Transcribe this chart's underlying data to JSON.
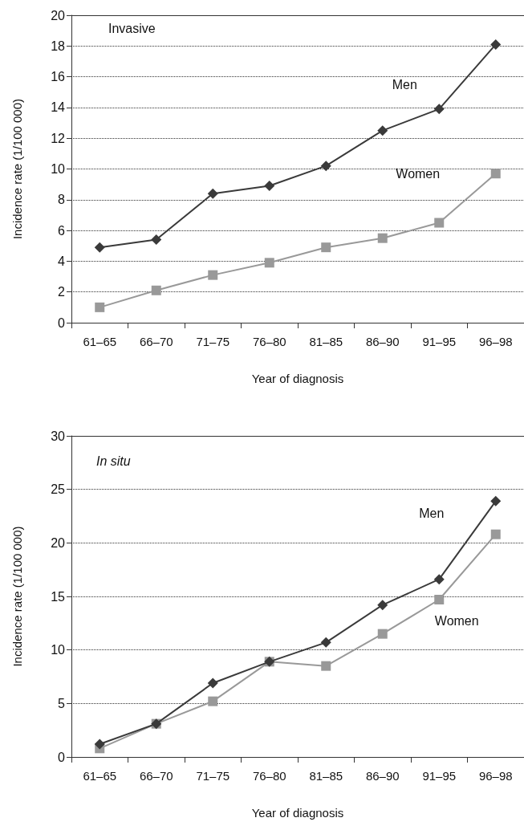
{
  "chart_data": [
    {
      "type": "line",
      "title": "Invasive",
      "xlabel": "Year of diagnosis",
      "ylabel": "Incidence rate (1/100 000)",
      "categories": [
        "61–65",
        "66–70",
        "71–75",
        "76–80",
        "81–85",
        "86–90",
        "91–95",
        "96–98"
      ],
      "series": [
        {
          "name": "Men",
          "color": "#3a3a3a",
          "marker": "diamond",
          "values": [
            4.9,
            5.4,
            8.4,
            8.9,
            10.2,
            12.5,
            13.9,
            18.1
          ]
        },
        {
          "name": "Women",
          "color": "#999999",
          "marker": "square",
          "values": [
            1.0,
            2.1,
            3.1,
            3.9,
            4.9,
            5.5,
            6.5,
            9.7
          ]
        }
      ],
      "ylim": [
        0,
        20
      ],
      "yticks": [
        0,
        2,
        4,
        6,
        8,
        10,
        12,
        14,
        16,
        18,
        20
      ],
      "grid": "y",
      "legend": false,
      "line_style": "solid"
    },
    {
      "type": "line",
      "title": "In situ",
      "xlabel": "Year of diagnosis",
      "ylabel": "Incidence rate (1/100 000)",
      "categories": [
        "61–65",
        "66–70",
        "71–75",
        "76–80",
        "81–85",
        "86–90",
        "91–95",
        "96–98"
      ],
      "series": [
        {
          "name": "Men",
          "color": "#3a3a3a",
          "marker": "diamond",
          "values": [
            1.2,
            3.1,
            6.9,
            8.9,
            10.7,
            14.2,
            16.6,
            23.9
          ]
        },
        {
          "name": "Women",
          "color": "#999999",
          "marker": "square",
          "values": [
            0.8,
            3.1,
            5.2,
            8.9,
            8.5,
            11.5,
            14.7,
            20.8
          ]
        }
      ],
      "ylim": [
        0,
        30
      ],
      "yticks": [
        0,
        5,
        10,
        15,
        20,
        25,
        30
      ],
      "grid": "y",
      "legend": false,
      "line_style": "solid"
    }
  ]
}
